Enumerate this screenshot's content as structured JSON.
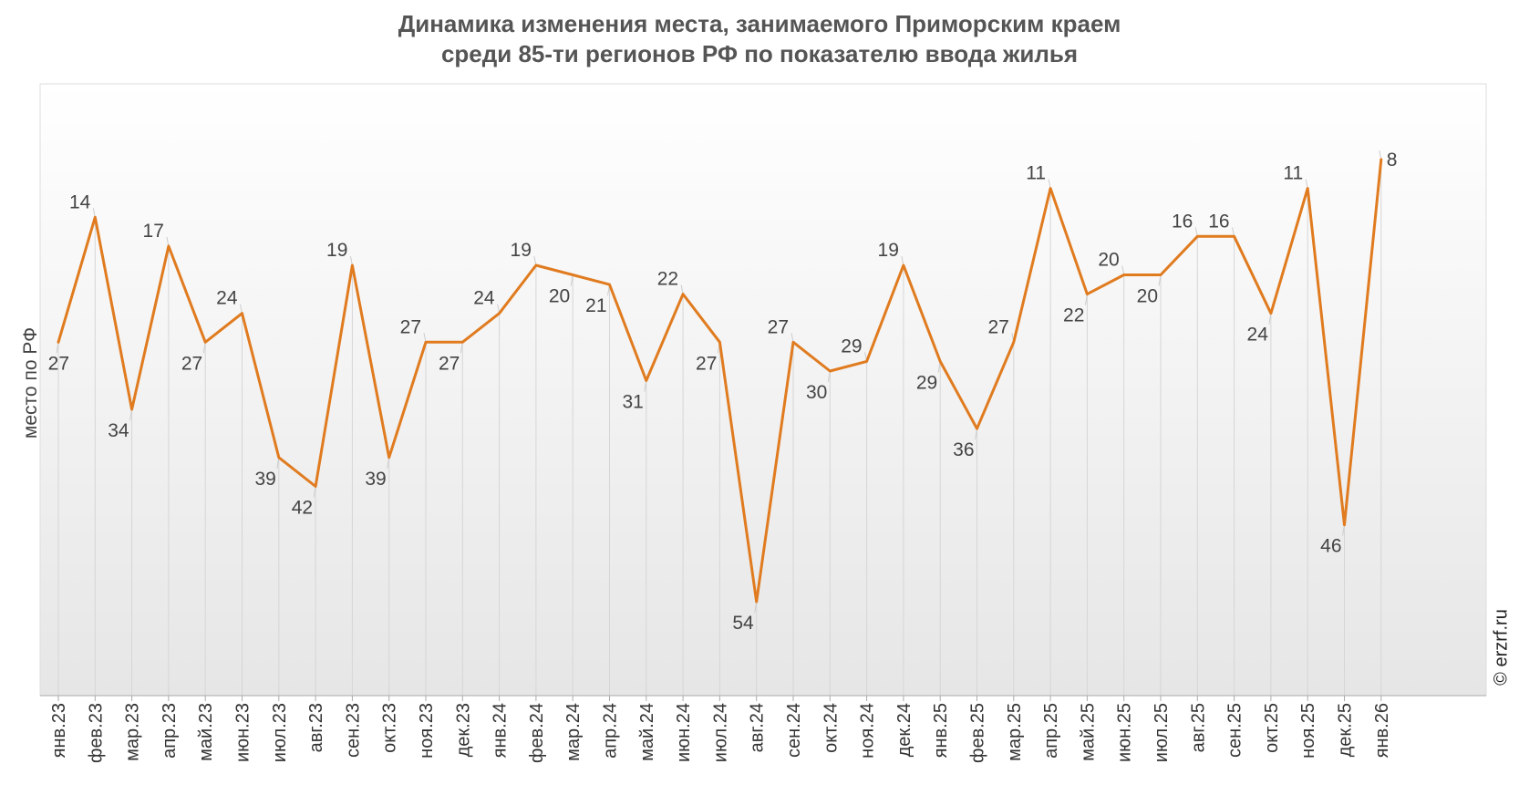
{
  "chart_data": {
    "type": "line",
    "title": "Динамика изменения места, занимаемого Приморским краем",
    "subtitle": "среди 85-ти регионов РФ по показателю ввода жилья",
    "ylabel": "место по РФ",
    "xlabel": "",
    "y_inverted": true,
    "grid": "vertical",
    "watermark": "© erzrf.ru",
    "colors": {
      "line": "#E07B1F",
      "background_top": "#ffffff",
      "background_bottom": "#e6e6e6"
    },
    "categories": [
      "янв.23",
      "фев.23",
      "мар.23",
      "апр.23",
      "май.23",
      "июн.23",
      "июл.23",
      "авг.23",
      "сен.23",
      "окт.23",
      "ноя.23",
      "дек.23",
      "янв.24",
      "фев.24",
      "мар.24",
      "апр.24",
      "май.24",
      "июн.24",
      "июл.24",
      "авг.24",
      "сен.24",
      "окт.24",
      "ноя.24",
      "дек.24",
      "янв.25",
      "фев.25",
      "мар.25",
      "апр.25",
      "май.25",
      "июн.25",
      "июл.25",
      "авг.25",
      "сен.25",
      "окт.25",
      "ноя.25",
      "дек.25",
      "янв.26"
    ],
    "series": [
      {
        "values": [
          27,
          14,
          34,
          17,
          27,
          24,
          39,
          42,
          19,
          39,
          27,
          27,
          24,
          19,
          20,
          21,
          31,
          22,
          27,
          54,
          27,
          30,
          29,
          19,
          29,
          36,
          27,
          11,
          22,
          20,
          20,
          16,
          16,
          24,
          11,
          46,
          8
        ]
      }
    ]
  }
}
